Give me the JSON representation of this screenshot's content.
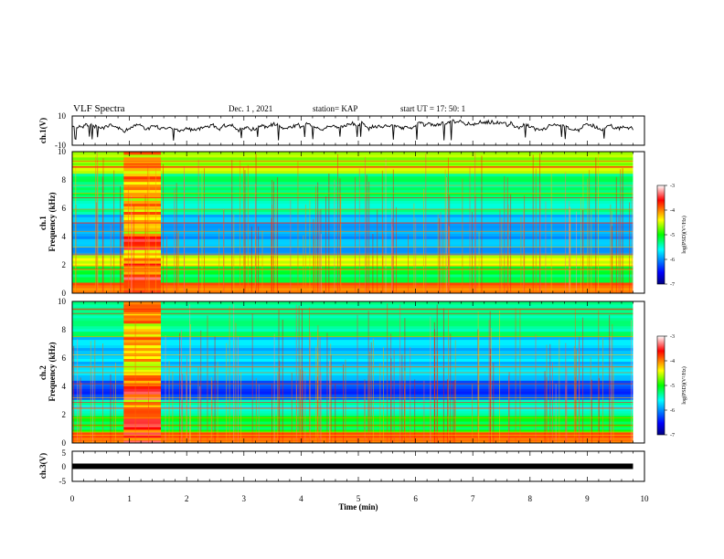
{
  "header": {
    "title": "VLF Spectra",
    "date": "Dec. 1  , 2021",
    "station": "station= KAP",
    "start": "start  UT  =   17: 50: 1"
  },
  "chart_data": [
    {
      "type": "line",
      "ylabel": "ch.1(V)",
      "ylim": [
        -10,
        10
      ],
      "ytick_labels": [
        "10",
        "-10"
      ],
      "xlim": [
        0,
        10
      ],
      "trace_range_approx": [
        -4,
        7
      ],
      "trace_end_min": 9.8
    },
    {
      "type": "heatmap",
      "ylabel": "ch.1\nFrequency (kHz)",
      "ylim": [
        0,
        10
      ],
      "ytick_labels": [
        "0",
        "2",
        "4",
        "6",
        "8",
        "10"
      ],
      "xlim": [
        0,
        10
      ],
      "data_end_min": 9.8,
      "colorbar": {
        "label": "log(PSD)(V²/Hz)",
        "range": [
          -7,
          -3
        ],
        "tick_labels": [
          "-3",
          "-4",
          "-5",
          "-6",
          "-7"
        ]
      },
      "bright_interval_min": [
        0.9,
        1.55
      ],
      "background_levels": [
        {
          "f_khz": [
            0,
            0.7
          ],
          "level": -4.0
        },
        {
          "f_khz": [
            0.7,
            2.0
          ],
          "level": -5.2
        },
        {
          "f_khz": [
            2.0,
            2.6
          ],
          "level": -4.5
        },
        {
          "f_khz": [
            2.6,
            5.5
          ],
          "level": -5.9
        },
        {
          "f_khz": [
            5.5,
            6.5
          ],
          "level": -5.4
        },
        {
          "f_khz": [
            6.5,
            8.5
          ],
          "level": -5.3
        },
        {
          "f_khz": [
            8.5,
            10
          ],
          "level": -4.6
        }
      ]
    },
    {
      "type": "heatmap",
      "ylabel": "ch.2\nFrequency (kHz)",
      "ylim": [
        0,
        10
      ],
      "ytick_labels": [
        "0",
        "2",
        "4",
        "6",
        "8",
        "10"
      ],
      "xlim": [
        0,
        10
      ],
      "data_end_min": 9.8,
      "colorbar": {
        "label": "log(PSD)(V²/Hz)",
        "range": [
          -7,
          -3
        ],
        "tick_labels": [
          "-3",
          "-4",
          "-5",
          "-6",
          "-7"
        ]
      },
      "bright_interval_min": [
        0.9,
        1.55
      ],
      "background_levels": [
        {
          "f_khz": [
            0,
            0.7
          ],
          "level": -4.0
        },
        {
          "f_khz": [
            0.7,
            2.0
          ],
          "level": -5.1
        },
        {
          "f_khz": [
            2.0,
            3.0
          ],
          "level": -5.5
        },
        {
          "f_khz": [
            3.0,
            4.5
          ],
          "level": -6.3
        },
        {
          "f_khz": [
            4.5,
            7.5
          ],
          "level": -5.8
        },
        {
          "f_khz": [
            7.5,
            10
          ],
          "level": -5.3
        }
      ]
    },
    {
      "type": "line",
      "ylabel": "ch.3(V)",
      "ylim": [
        -5,
        5
      ],
      "ytick_labels": [
        "5",
        "0",
        "-5"
      ],
      "xlim": [
        0,
        10
      ],
      "trace_value": 0,
      "trace_end_min": 9.8
    }
  ],
  "xaxis": {
    "label": "Time  (min)",
    "tick_labels": [
      "0",
      "1",
      "2",
      "3",
      "4",
      "5",
      "6",
      "7",
      "8",
      "9",
      "10"
    ]
  }
}
